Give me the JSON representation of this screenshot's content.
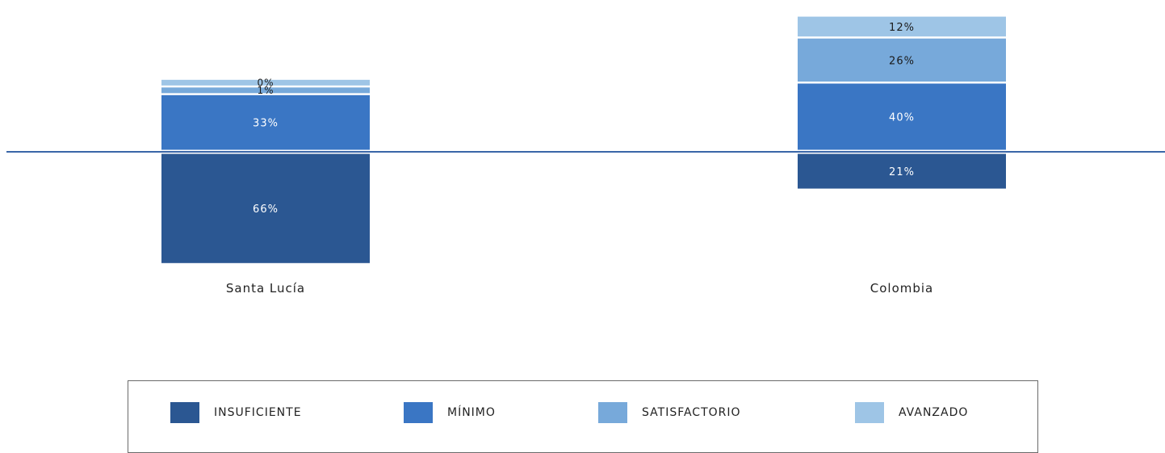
{
  "chart_data": {
    "type": "bar",
    "stacking": "diverging",
    "categories": [
      "Santa Lucía",
      "Colombia"
    ],
    "series": [
      {
        "name": "INSUFICIENTE",
        "values": [
          66,
          21
        ],
        "color": "#2b5792",
        "direction": "below"
      },
      {
        "name": "MÍNIMO",
        "values": [
          33,
          40
        ],
        "color": "#3a76c4",
        "direction": "above"
      },
      {
        "name": "SATISFACTORIO",
        "values": [
          1,
          26
        ],
        "color": "#77a9da",
        "direction": "above"
      },
      {
        "name": "AVANZADO",
        "values": [
          0,
          12
        ],
        "color": "#9ec5e6",
        "direction": "above"
      }
    ],
    "value_suffix": "%",
    "legend_position": "bottom",
    "baseline_color": "#3a66a8"
  },
  "legend": {
    "items": [
      {
        "label": "INSUFICIENTE",
        "color": "#2b5792"
      },
      {
        "label": "MÍNIMO",
        "color": "#3a76c4"
      },
      {
        "label": "SATISFACTORIO",
        "color": "#77a9da"
      },
      {
        "label": "AVANZADO",
        "color": "#9ec5e6"
      }
    ]
  }
}
